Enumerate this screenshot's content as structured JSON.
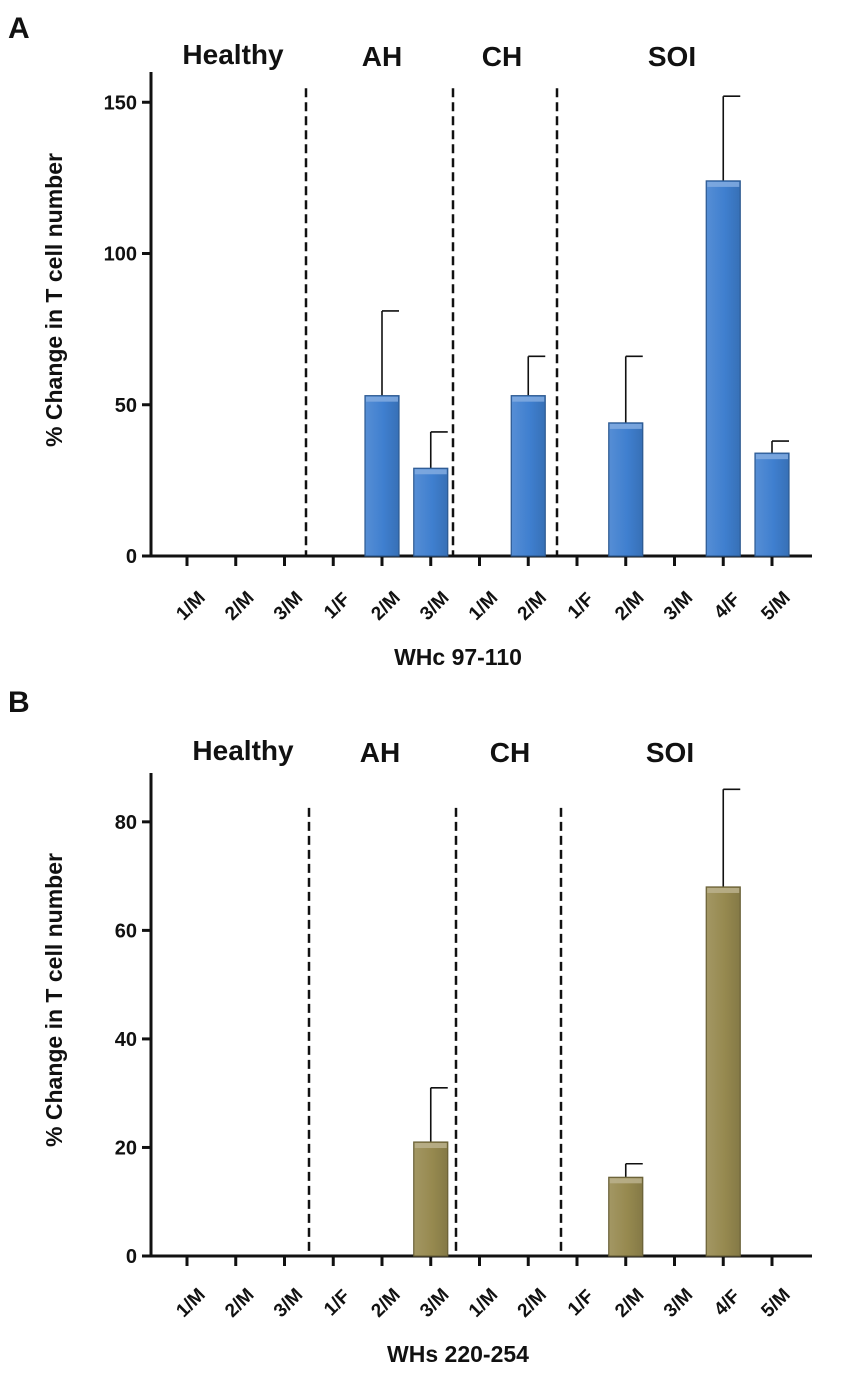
{
  "chart_data": [
    {
      "panel": "A",
      "type": "bar",
      "xlabel": "WHc 97-110",
      "ylabel": "% Change in T cell number",
      "ylim": [
        0,
        160
      ],
      "yticks": [
        0,
        50,
        100,
        150
      ],
      "bar_color": "#3f7fcf",
      "groups": [
        "Healthy",
        "AH",
        "CH",
        "SOI"
      ],
      "categories": [
        "1/M",
        "2/M",
        "3/M",
        "1/F",
        "2/M",
        "3/M",
        "1/M",
        "2/M",
        "1/F",
        "2/M",
        "3/M",
        "4/F",
        "5/M"
      ],
      "values": [
        0,
        0,
        0,
        0,
        53,
        29,
        0,
        53,
        0,
        44,
        0,
        124,
        34
      ],
      "errors": [
        0,
        0,
        0,
        0,
        28,
        12,
        0,
        13,
        0,
        22,
        0,
        28,
        4
      ]
    },
    {
      "panel": "B",
      "type": "bar",
      "xlabel": "WHs 220-254",
      "ylabel": "% Change in T cell number",
      "ylim": [
        0,
        89
      ],
      "yticks": [
        0,
        20,
        40,
        60,
        80
      ],
      "bar_color": "#96894f",
      "groups": [
        "Healthy",
        "AH",
        "CH",
        "SOI"
      ],
      "categories": [
        "1/M",
        "2/M",
        "3/M",
        "1/F",
        "2/M",
        "3/M",
        "1/M",
        "2/M",
        "1/F",
        "2/M",
        "3/M",
        "4/F",
        "5/M"
      ],
      "values": [
        0,
        0,
        0,
        0,
        0,
        21,
        0,
        0,
        0,
        14.5,
        0,
        68,
        0
      ],
      "errors": [
        0,
        0,
        0,
        0,
        0,
        10,
        0,
        0,
        0,
        2.5,
        0,
        18,
        0
      ]
    }
  ]
}
